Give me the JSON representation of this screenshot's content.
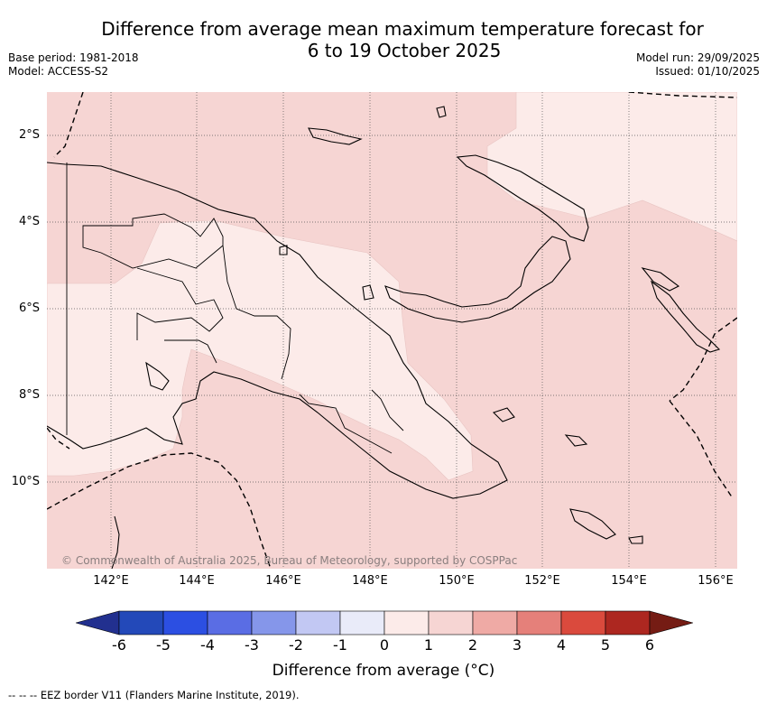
{
  "title_line1": "Difference from average mean maximum temperature forecast for",
  "title_line2": "6 to 19 October 2025",
  "base_period": "Base period: 1981-2018",
  "model": "Model: ACCESS-S2",
  "model_run": "Model run: 29/09/2025",
  "issued": "Issued: 01/10/2025",
  "lat_labels": [
    "2°S",
    "4°S",
    "6°S",
    "8°S",
    "10°S"
  ],
  "lon_labels": [
    "142°E",
    "144°E",
    "146°E",
    "148°E",
    "150°E",
    "152°E",
    "154°E",
    "156°E"
  ],
  "copyright": "© Commonwealth of Australia 2025, Bureau of Meteorology, supported by COSPPac",
  "colorbar": {
    "title": "Difference from average (°C)",
    "ticks": [
      "-6",
      "-5",
      "-4",
      "-3",
      "-2",
      "-1",
      "0",
      "1",
      "2",
      "3",
      "4",
      "5",
      "6"
    ],
    "colors": [
      "#22308f",
      "#2349b9",
      "#2c4fe2",
      "#5a6de4",
      "#8596ea",
      "#c2c8f3",
      "#e9ebf9",
      "#fcebe9",
      "#f6d5d3",
      "#efaaa5",
      "#e5807a",
      "#da4a3d",
      "#ad2720",
      "#751c14"
    ]
  },
  "map": {
    "dominant_category": "1 to 2",
    "light_category": "0 to 1",
    "colors": {
      "above_1": "#f6d5d3",
      "above_0": "#fcebe9"
    }
  },
  "footer": "-- -- -- EEZ border V11 (Flanders Marine Institute, 2019)."
}
